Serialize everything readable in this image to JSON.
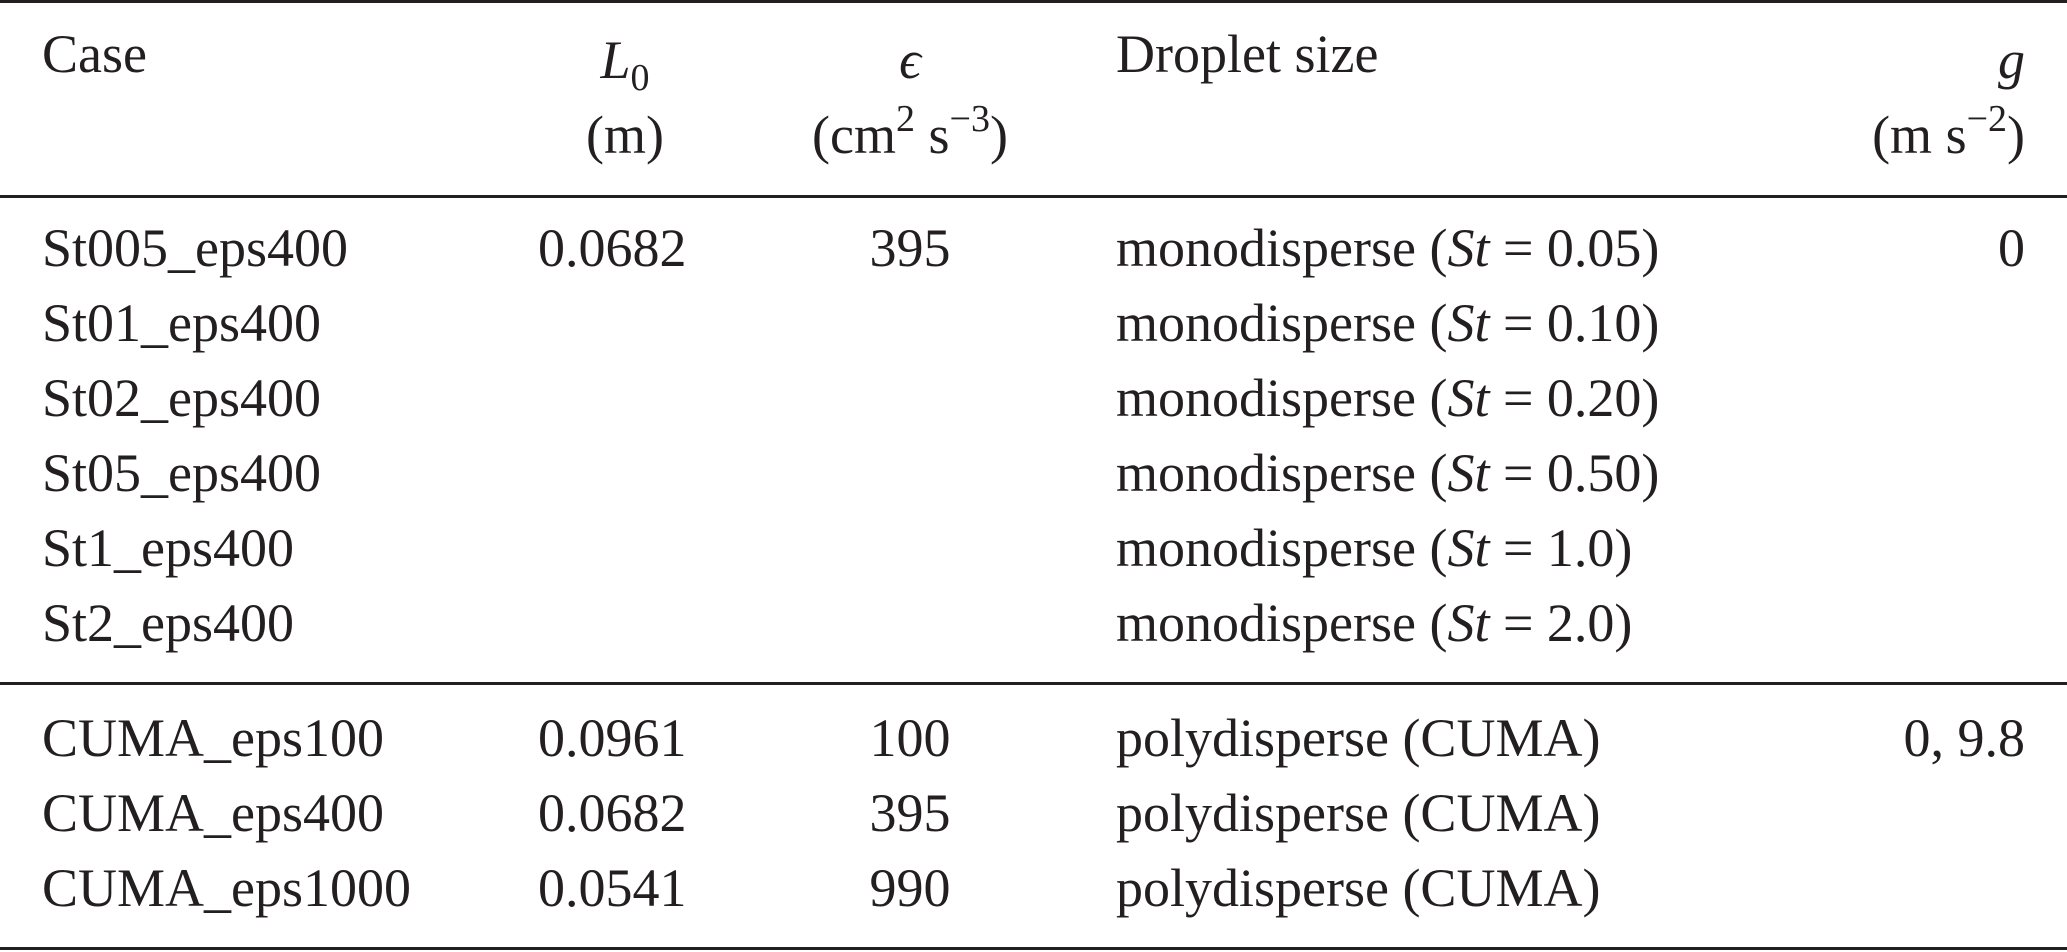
{
  "table": {
    "headers": {
      "case": "Case",
      "l0_symbol": "L",
      "l0_subscript": "0",
      "l0_unit": "(m)",
      "eps_symbol": "ϵ",
      "eps_unit_open": "(cm",
      "eps_unit_exp1": "2",
      "eps_unit_mid": " s",
      "eps_unit_exp2": "−3",
      "eps_unit_close": ")",
      "droplet_size": "Droplet size",
      "g_symbol": "g",
      "g_unit_open": "(m s",
      "g_unit_exp": "−2",
      "g_unit_close": ")"
    },
    "group1": {
      "rows": [
        {
          "case": "St005_eps400",
          "l0": "0.0682",
          "eps": "395",
          "drop_prefix": "monodisperse (",
          "st": "St",
          "drop_suffix": " = 0.05)",
          "g": "0"
        },
        {
          "case": "St01_eps400",
          "l0": "",
          "eps": "",
          "drop_prefix": "monodisperse (",
          "st": "St",
          "drop_suffix": " = 0.10)",
          "g": ""
        },
        {
          "case": "St02_eps400",
          "l0": "",
          "eps": "",
          "drop_prefix": "monodisperse (",
          "st": "St",
          "drop_suffix": " = 0.20)",
          "g": ""
        },
        {
          "case": "St05_eps400",
          "l0": "",
          "eps": "",
          "drop_prefix": "monodisperse (",
          "st": "St",
          "drop_suffix": " = 0.50)",
          "g": ""
        },
        {
          "case": "St1_eps400",
          "l0": "",
          "eps": "",
          "drop_prefix": "monodisperse (",
          "st": "St",
          "drop_suffix": " = 1.0)",
          "g": ""
        },
        {
          "case": "St2_eps400",
          "l0": "",
          "eps": "",
          "drop_prefix": "monodisperse (",
          "st": "St",
          "drop_suffix": " = 2.0)",
          "g": ""
        }
      ]
    },
    "group2": {
      "rows": [
        {
          "case": "CUMA_eps100",
          "l0": "0.0961",
          "eps": "100",
          "drop": "polydisperse (CUMA)",
          "g": "0, 9.8"
        },
        {
          "case": "CUMA_eps400",
          "l0": "0.0682",
          "eps": "395",
          "drop": "polydisperse (CUMA)",
          "g": ""
        },
        {
          "case": "CUMA_eps1000",
          "l0": "0.0541",
          "eps": "990",
          "drop": "polydisperse (CUMA)",
          "g": ""
        }
      ]
    }
  }
}
